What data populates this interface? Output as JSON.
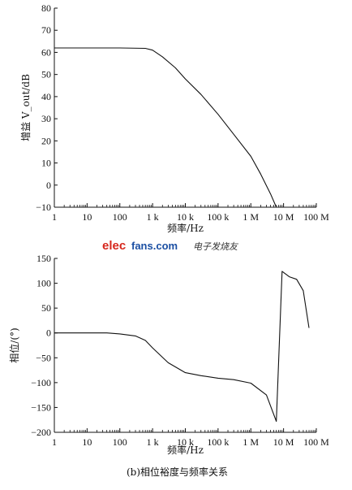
{
  "chart_data": [
    {
      "type": "line",
      "panel": "gain",
      "ylabel": "增益 V_out/dB",
      "xlabel": "频率/Hz",
      "caption": "",
      "xscale": "log",
      "xlim": [
        1,
        100000000
      ],
      "ylim": [
        -10,
        80
      ],
      "x_ticks": [
        1,
        10,
        100,
        1000,
        10000,
        100000,
        1000000,
        10000000,
        100000000
      ],
      "x_tick_labels": [
        "1",
        "10",
        "100",
        "1 k",
        "10 k",
        "100 k",
        "1 M",
        "10 M",
        "100 M"
      ],
      "y_ticks": [
        -10,
        0,
        10,
        20,
        30,
        40,
        50,
        60,
        70,
        80
      ],
      "y_tick_labels": [
        "−10",
        "0",
        "10",
        "20",
        "30",
        "40",
        "50",
        "60",
        "70",
        "80"
      ],
      "grid": false,
      "series": [
        {
          "x": [
            1,
            10,
            100,
            600,
            1000,
            2000,
            5000,
            10000,
            30000,
            100000,
            300000,
            1000000,
            2000000,
            4000000,
            6000000
          ],
          "y": [
            62,
            62,
            62,
            61.8,
            61,
            58,
            53,
            48,
            41,
            32,
            23,
            13,
            5,
            -4,
            -10
          ]
        }
      ]
    },
    {
      "type": "line",
      "panel": "phase",
      "ylabel": "相位/(°)",
      "xlabel": "频率/Hz",
      "caption": "(b)相位裕度与频率关系",
      "xscale": "log",
      "xlim": [
        1,
        100000000
      ],
      "ylim": [
        -200,
        150
      ],
      "x_ticks": [
        1,
        10,
        100,
        1000,
        10000,
        100000,
        1000000,
        10000000,
        100000000
      ],
      "x_tick_labels": [
        "1",
        "10",
        "100",
        "1 k",
        "10 k",
        "100 k",
        "1 M",
        "10 M",
        "100 M"
      ],
      "y_ticks": [
        -200,
        -150,
        -100,
        -50,
        0,
        50,
        100,
        150
      ],
      "y_tick_labels": [
        "−200",
        "−150",
        "−100",
        "−50",
        "0",
        "50",
        "100",
        "150"
      ],
      "grid": false,
      "series": [
        {
          "x": [
            1,
            10,
            40,
            100,
            300,
            600,
            1000,
            3000,
            10000,
            30000,
            100000,
            300000,
            1000000,
            3000000,
            6000000,
            9000000,
            15000000,
            25000000,
            40000000,
            60000000
          ],
          "y": [
            0,
            0,
            0,
            -2,
            -6,
            -15,
            -30,
            -60,
            -80,
            -86,
            -91,
            -94,
            -101,
            -125,
            -178,
            124,
            113,
            108,
            85,
            10
          ]
        }
      ]
    }
  ],
  "watermark": {
    "brand_red": "elec",
    "brand_blue": "fans.com",
    "chinese": "电子发烧友"
  },
  "colors": {
    "line": "#111111",
    "watermark_red": "#d6261c",
    "watermark_blue": "#1b4fa3"
  }
}
